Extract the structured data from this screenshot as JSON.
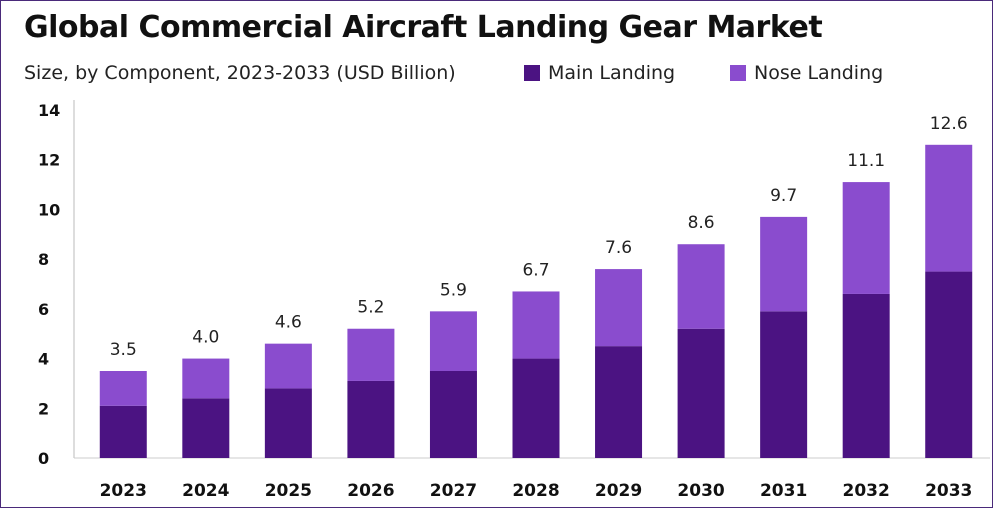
{
  "chart_data": {
    "type": "bar",
    "stacked": true,
    "title": "Global Commercial Aircraft Landing Gear Market",
    "subtitle": "Size, by Component, 2023-2033 (USD Billion)",
    "categories": [
      "2023",
      "2024",
      "2025",
      "2026",
      "2027",
      "2028",
      "2029",
      "2030",
      "2031",
      "2032",
      "2033"
    ],
    "series": [
      {
        "name": "Main Landing",
        "color": "#4b1382",
        "values": [
          2.1,
          2.4,
          2.8,
          3.1,
          3.5,
          4.0,
          4.5,
          5.2,
          5.9,
          6.6,
          7.5
        ]
      },
      {
        "name": "Nose Landing",
        "color": "#8a4cce",
        "values": [
          1.4,
          1.6,
          1.8,
          2.1,
          2.4,
          2.7,
          3.1,
          3.4,
          3.8,
          4.5,
          5.1
        ]
      }
    ],
    "totals": [
      "3.5",
      "4.0",
      "4.6",
      "5.2",
      "5.9",
      "6.7",
      "7.6",
      "8.6",
      "9.7",
      "11.1",
      "12.6"
    ],
    "ylim": [
      0,
      14
    ],
    "yticks": [
      "0",
      "2",
      "4",
      "6",
      "8",
      "10",
      "12",
      "14"
    ],
    "grid": false,
    "legend_position": "top"
  }
}
